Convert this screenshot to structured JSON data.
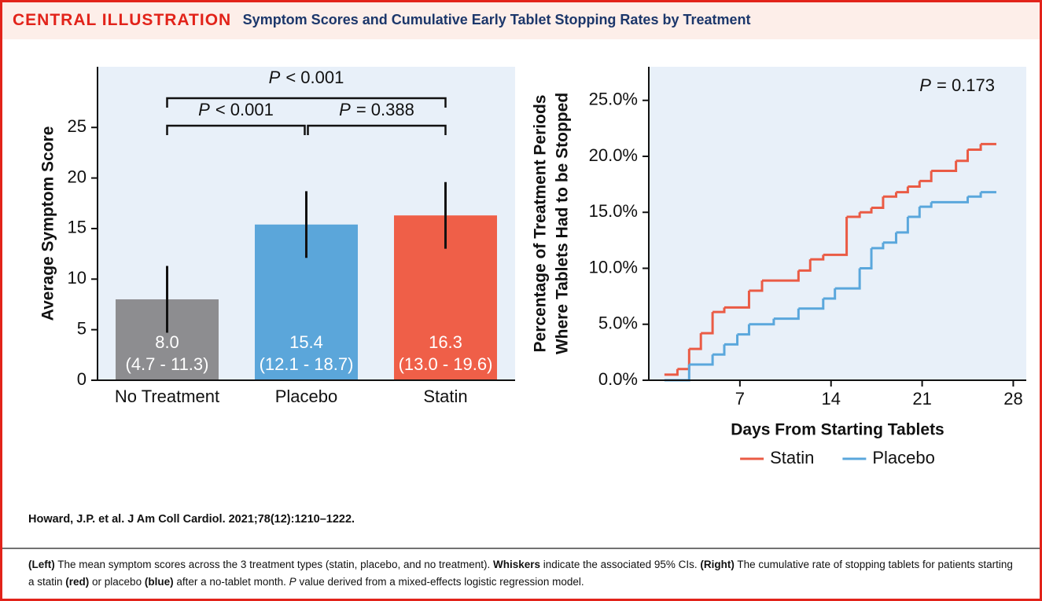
{
  "header": {
    "label": "CENTRAL ILLUSTRATION",
    "title": "Symptom Scores and Cumulative Early Tablet Stopping Rates by Treatment"
  },
  "chart_data": [
    {
      "type": "bar",
      "ylabel": "Average Symptom Score",
      "categories": [
        "No Treatment",
        "Placebo",
        "Statin"
      ],
      "values": [
        8.0,
        15.4,
        16.3
      ],
      "value_labels": [
        "8.0",
        "15.4",
        "16.3"
      ],
      "ci_low": [
        4.7,
        12.1,
        13.0
      ],
      "ci_high": [
        11.3,
        18.7,
        19.6
      ],
      "ci_labels": [
        "(4.7 - 11.3)",
        "(12.1 - 18.7)",
        "(13.0 - 19.6)"
      ],
      "colors": [
        "#8d8d90",
        "#5ba6da",
        "#ef5f48"
      ],
      "ylim": [
        0,
        31
      ],
      "yticks": [
        0,
        5,
        10,
        15,
        20,
        25
      ],
      "brackets": [
        {
          "from": "No Treatment",
          "to": "Statin",
          "symbol": "P",
          "label": "< 0.001"
        },
        {
          "from": "No Treatment",
          "to": "Placebo",
          "symbol": "P",
          "label": "< 0.001"
        },
        {
          "from": "Placebo",
          "to": "Statin",
          "symbol": "P",
          "label": "= 0.388"
        }
      ]
    },
    {
      "type": "line",
      "step": true,
      "xlabel": "Days From Starting Tablets",
      "ylabel": [
        "Percentage of Treatment Periods",
        "Where Tablets Had to be Stopped"
      ],
      "annotation": {
        "symbol": "P",
        "label": "= 0.173"
      },
      "xlim": [
        0,
        29
      ],
      "xticks": [
        7,
        14,
        21,
        28
      ],
      "ylim": [
        0,
        28
      ],
      "yticks": [
        {
          "value": 0,
          "label": "0.0%"
        },
        {
          "value": 5,
          "label": "5.0%"
        },
        {
          "value": 10,
          "label": "10.0%"
        },
        {
          "value": 15,
          "label": "15.0%"
        },
        {
          "value": 20,
          "label": "20.0%"
        },
        {
          "value": 25,
          "label": "25.0%"
        }
      ],
      "legend": "bottom",
      "series": [
        {
          "name": "Statin",
          "color": "#ea5b45",
          "x": [
            1.2,
            2.2,
            3.1,
            4.0,
            4.9,
            5.8,
            7.7,
            8.7,
            11.5,
            12.4,
            13.4,
            15.2,
            16.2,
            17.1,
            18.0,
            19.0,
            19.9,
            20.8,
            21.7,
            23.6,
            24.5,
            25.5,
            26.7
          ],
          "values": [
            0.5,
            1.0,
            2.8,
            4.2,
            6.1,
            6.5,
            8.0,
            8.9,
            9.8,
            10.8,
            11.2,
            14.6,
            15.0,
            15.4,
            16.4,
            16.8,
            17.3,
            17.8,
            18.7,
            19.6,
            20.6,
            21.1,
            21.1
          ]
        },
        {
          "name": "Placebo",
          "color": "#5aa7dc",
          "x": [
            1.2,
            3.1,
            4.9,
            5.8,
            6.8,
            7.7,
            9.6,
            11.5,
            13.4,
            14.3,
            16.2,
            17.1,
            18.0,
            19.0,
            19.9,
            20.8,
            21.7,
            24.5,
            25.5,
            26.7
          ],
          "values": [
            0,
            1.4,
            2.3,
            3.2,
            4.1,
            5.0,
            5.5,
            6.4,
            7.3,
            8.2,
            10.0,
            11.8,
            12.3,
            13.2,
            14.6,
            15.5,
            15.9,
            16.4,
            16.8,
            16.8
          ]
        }
      ]
    }
  ],
  "citation": "Howard, J.P. et al. J Am Coll Cardiol. 2021;78(12):1210–1222.",
  "caption": [
    {
      "text": "(Left)",
      "style": "bold"
    },
    {
      "text": " The mean symptom scores across the 3 treatment types (statin, placebo, and no treatment). "
    },
    {
      "text": "Whiskers",
      "style": "bold"
    },
    {
      "text": " indicate the associated 95% CIs. "
    },
    {
      "text": "(Right)",
      "style": "bold"
    },
    {
      "text": " The cumulative rate of stopping tablets for patients starting a statin "
    },
    {
      "text": "(red)",
      "style": "bold"
    },
    {
      "text": " or placebo "
    },
    {
      "text": "(blue)",
      "style": "bold"
    },
    {
      "text": " after a no-tablet month. "
    },
    {
      "text": "P",
      "style": "italic"
    },
    {
      "text": " value derived from a mixed-effects logistic regression model."
    }
  ]
}
